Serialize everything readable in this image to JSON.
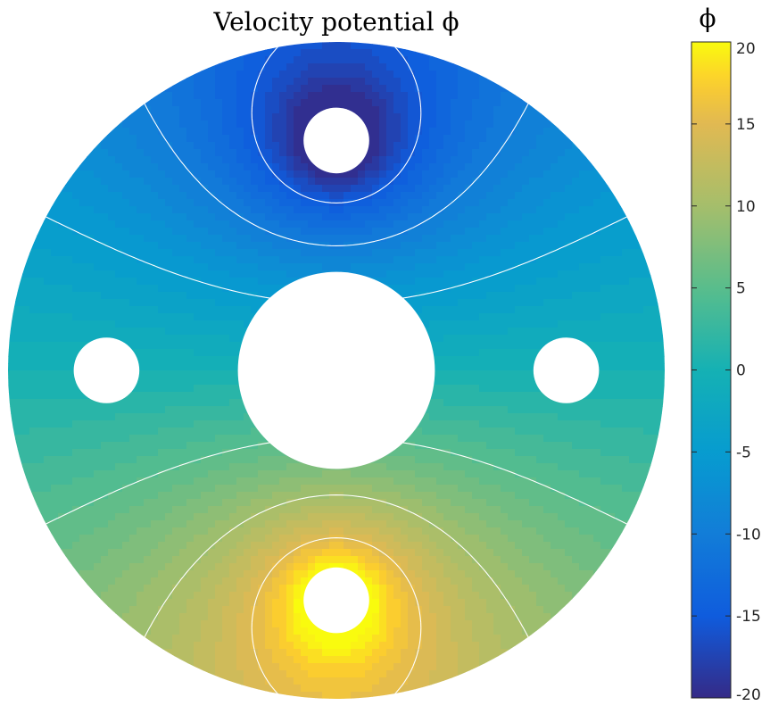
{
  "chart_data": {
    "type": "heatmap",
    "title": "Velocity potential ϕ",
    "colorbar": {
      "label": "ϕ",
      "range": [
        -20,
        20
      ],
      "ticks": [
        20,
        15,
        10,
        5,
        0,
        -5,
        -10,
        -15,
        -20
      ],
      "tick_labels": [
        "20",
        "15",
        "10",
        "5",
        "0",
        "-5",
        "-10",
        "-15",
        "-20"
      ],
      "colormap": "parula",
      "levels": 40
    },
    "domain": {
      "shape": "annulus with four circular holes",
      "outer_radius": 1.0,
      "inner_radius": 0.3,
      "holes": [
        {
          "position": "top",
          "x": 0.0,
          "y": 0.7,
          "r": 0.1
        },
        {
          "position": "bottom",
          "x": 0.0,
          "y": -0.7,
          "r": 0.1
        },
        {
          "position": "left",
          "x": -0.7,
          "y": 0.0,
          "r": 0.1
        },
        {
          "position": "right",
          "x": 0.7,
          "y": 0.0,
          "r": 0.1
        }
      ]
    },
    "field": {
      "description": "phi increases from about -20 near the top hole to about 20 near the bottom hole",
      "min": -20,
      "max": 20
    },
    "contour_levels": [
      -15,
      -10,
      -5,
      0,
      5,
      10,
      15
    ],
    "contour_color": "#ffffff",
    "grid": false,
    "legend": "colorbar-right"
  }
}
